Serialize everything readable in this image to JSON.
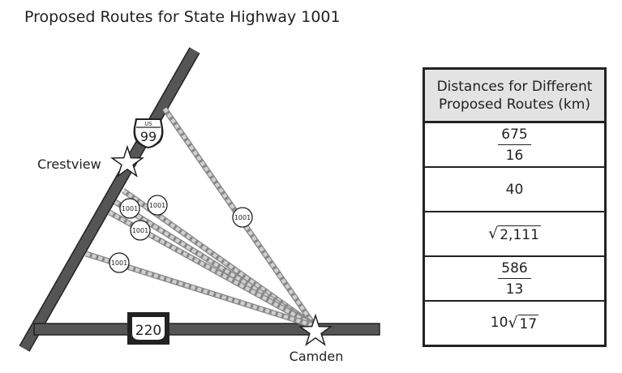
{
  "title": "Proposed Routes for State Highway 1001",
  "map": {
    "city_crestview": "Crestview",
    "city_camden": "Camden",
    "shield_us_prefix": "US",
    "shield_us_number": "99",
    "shield_interstate_number": "220",
    "route_label": "1001"
  },
  "table": {
    "header": "Distances for Different Proposed Routes (km)",
    "rows": [
      {
        "type": "fraction",
        "numerator": "675",
        "denominator": "16"
      },
      {
        "type": "plain",
        "text": "40"
      },
      {
        "type": "sqrt",
        "coef": "",
        "radicand": "2,111"
      },
      {
        "type": "fraction",
        "numerator": "586",
        "denominator": "13"
      },
      {
        "type": "sqrt",
        "coef": "10",
        "radicand": "17"
      }
    ]
  }
}
